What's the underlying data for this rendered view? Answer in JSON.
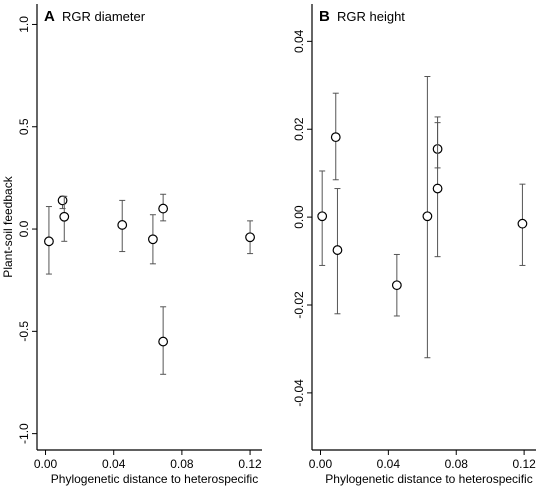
{
  "chart_data": [
    {
      "type": "scatter",
      "panel_letter": "A",
      "title": "RGR diameter",
      "xlabel": "Phylogenetic distance to heterospecific",
      "ylabel": "Plant-soil feedback",
      "xlim": [
        -0.005,
        0.127
      ],
      "ylim": [
        -1.08,
        1.1
      ],
      "xticks": [
        0.0,
        0.04,
        0.08,
        0.12
      ],
      "xtick_labels": [
        "0.00",
        "0.04",
        "0.08",
        "0.12"
      ],
      "yticks": [
        1.0,
        0.5,
        0.0,
        -0.5,
        -1.0
      ],
      "ytick_labels": [
        "1.0",
        "0.5",
        "0.0",
        "-0.5",
        "-1.0"
      ],
      "grid": false,
      "points": [
        {
          "x": 0.002,
          "y": -0.06,
          "lo": -0.22,
          "hi": 0.11
        },
        {
          "x": 0.01,
          "y": 0.14,
          "lo": 0.1,
          "hi": 0.16
        },
        {
          "x": 0.011,
          "y": 0.06,
          "lo": -0.06,
          "hi": 0.16
        },
        {
          "x": 0.045,
          "y": 0.02,
          "lo": -0.11,
          "hi": 0.14
        },
        {
          "x": 0.063,
          "y": -0.05,
          "lo": -0.17,
          "hi": 0.07
        },
        {
          "x": 0.069,
          "y": 0.1,
          "lo": 0.04,
          "hi": 0.17
        },
        {
          "x": 0.069,
          "y": -0.55,
          "lo": -0.71,
          "hi": -0.38
        },
        {
          "x": 0.12,
          "y": -0.04,
          "lo": -0.12,
          "hi": 0.04
        }
      ]
    },
    {
      "type": "scatter",
      "panel_letter": "B",
      "title": "RGR height",
      "xlabel": "Phylogenetic distance to heterospecific",
      "ylabel": "",
      "xlim": [
        -0.005,
        0.127
      ],
      "ylim": [
        -0.053,
        0.0485
      ],
      "xticks": [
        0.0,
        0.04,
        0.08,
        0.12
      ],
      "xtick_labels": [
        "0.00",
        "0.04",
        "0.08",
        "0.12"
      ],
      "yticks": [
        0.04,
        0.02,
        0.0,
        -0.02,
        -0.04
      ],
      "ytick_labels": [
        "0.04",
        "0.02",
        "0.00",
        "-0.02",
        "-0.04"
      ],
      "grid": false,
      "points": [
        {
          "x": 0.001,
          "y": 0.0002,
          "lo": -0.011,
          "hi": 0.0105
        },
        {
          "x": 0.009,
          "y": 0.0182,
          "lo": 0.0085,
          "hi": 0.0282
        },
        {
          "x": 0.01,
          "y": -0.0075,
          "lo": -0.022,
          "hi": 0.0065
        },
        {
          "x": 0.045,
          "y": -0.0155,
          "lo": -0.0225,
          "hi": -0.0085
        },
        {
          "x": 0.063,
          "y": 0.0002,
          "lo": -0.032,
          "hi": 0.032
        },
        {
          "x": 0.069,
          "y": 0.0155,
          "lo": 0.0112,
          "hi": 0.0228
        },
        {
          "x": 0.069,
          "y": 0.0065,
          "lo": -0.009,
          "hi": 0.0215
        },
        {
          "x": 0.119,
          "y": -0.0015,
          "lo": -0.011,
          "hi": 0.0075
        }
      ]
    }
  ]
}
